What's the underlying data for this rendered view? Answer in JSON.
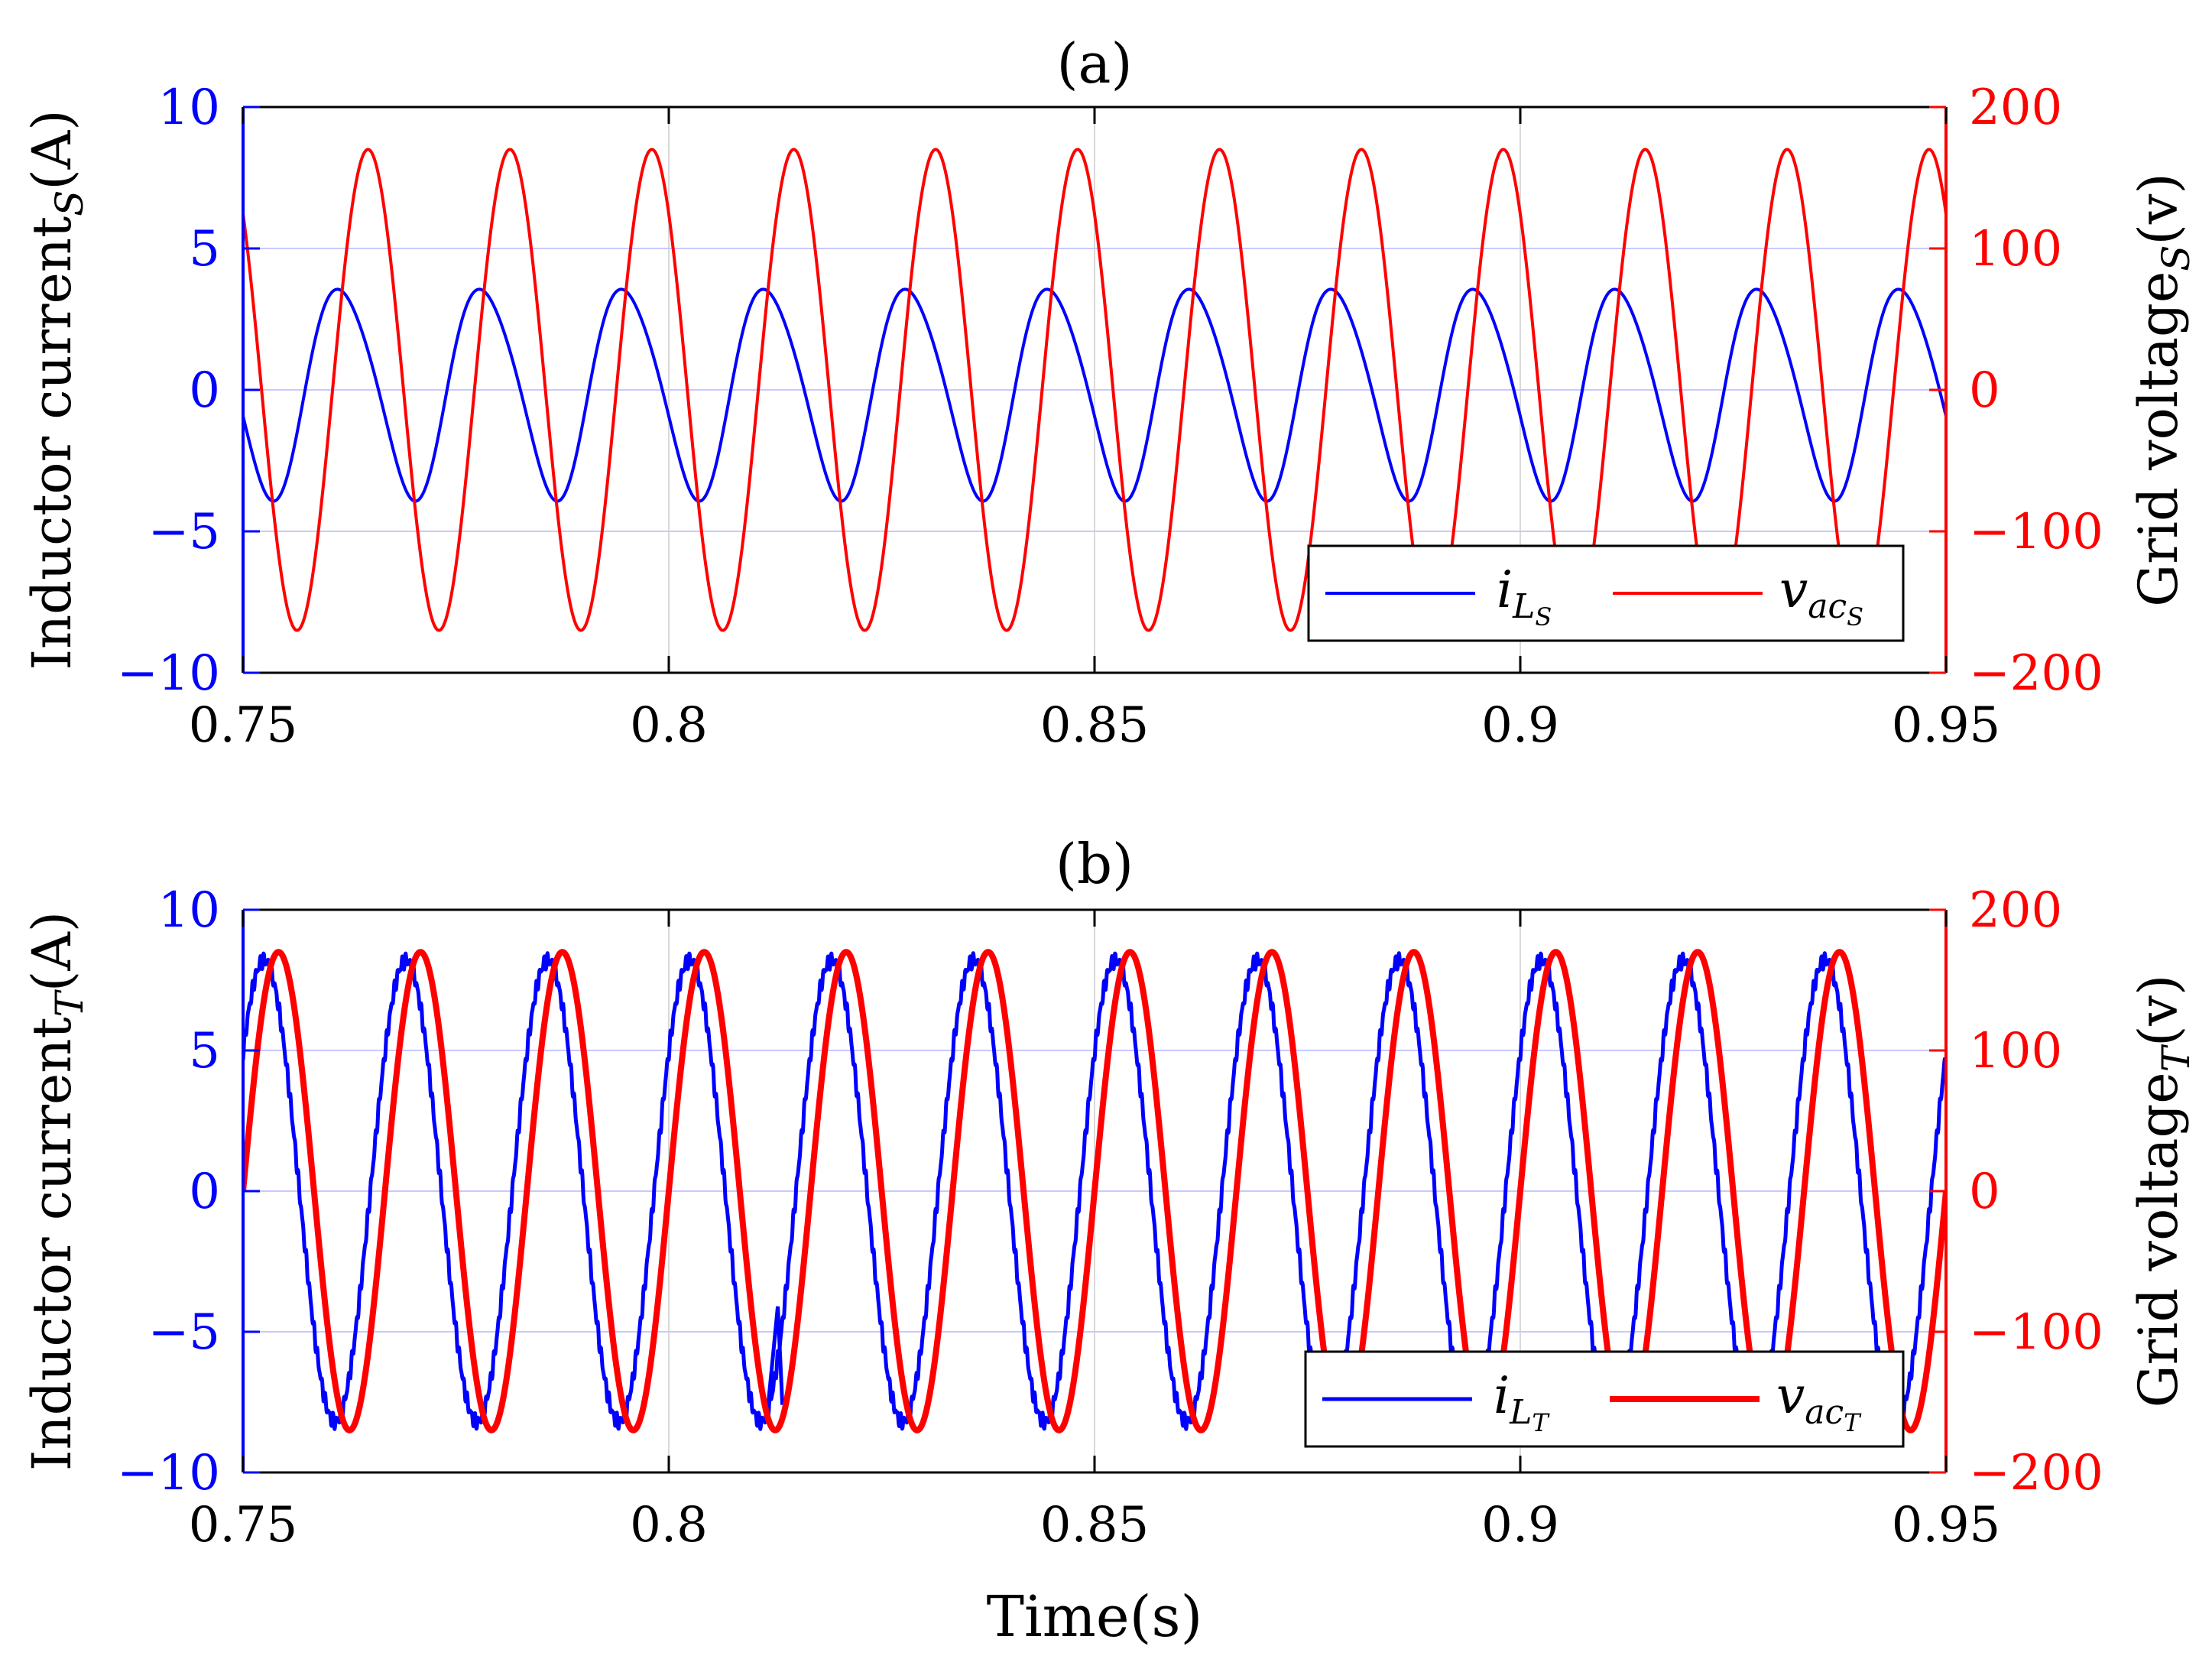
{
  "chart_data": [
    {
      "type": "line",
      "panel": "a",
      "title": "(a)",
      "xlabel": "",
      "xlim": [
        0.75,
        0.95
      ],
      "xticks": [
        "0.75",
        "0.8",
        "0.85",
        "0.9",
        "0.95"
      ],
      "ylabel_left": "Inductor current",
      "ylabel_left_sub": "S",
      "ylabel_left_unit": "(A)",
      "ylim_left": [
        -10,
        10
      ],
      "yticks_left": [
        "10",
        "5",
        "0",
        "−5",
        "−10"
      ],
      "ylabel_right": "Grid voltage",
      "ylabel_right_sub": "S",
      "ylabel_right_unit": "(v)",
      "ylim_right": [
        -200,
        200
      ],
      "yticks_right": [
        "200",
        "100",
        "0",
        "−100",
        "−200"
      ],
      "legend_position": "bottom-right",
      "series": [
        {
          "name": "i_LS",
          "legend_main": "i",
          "legend_sub": "L",
          "legend_subsub": "S",
          "axis": "left",
          "color": "#0000ff",
          "waveform": "sine",
          "frequency_hz": 60,
          "amplitude": 3.7,
          "phase_deg": 200,
          "peak_labels": [
            {
              "t": 0.7597,
              "v": 3.6
            },
            {
              "t": 0.7777,
              "v": 3.6
            },
            {
              "t": 0.7937,
              "v": 3.6
            },
            {
              "t": 0.8107,
              "v": 3.6
            },
            {
              "t": 0.8262,
              "v": 4.1
            },
            {
              "t": 0.8432,
              "v": 3.9
            },
            {
              "t": 0.8597,
              "v": 3.8
            },
            {
              "t": 0.8767,
              "v": 3.8
            },
            {
              "t": 0.8932,
              "v": 3.8
            },
            {
              "t": 0.9097,
              "v": 3.8
            },
            {
              "t": 0.9267,
              "v": 3.8
            },
            {
              "t": 0.9432,
              "v": 3.8
            }
          ]
        },
        {
          "name": "v_acS",
          "legend_main": "v",
          "legend_sub": "ac",
          "legend_subsub": "S",
          "axis": "right",
          "color": "#ff0000",
          "waveform": "sine",
          "frequency_hz": 60,
          "amplitude": 170,
          "phase_deg": 133
        }
      ]
    },
    {
      "type": "line",
      "panel": "b",
      "title": "(b)",
      "xlabel": "Time(s)",
      "xlim": [
        0.75,
        0.95
      ],
      "xticks": [
        "0.75",
        "0.8",
        "0.85",
        "0.9",
        "0.95"
      ],
      "ylabel_left": "Inductor current",
      "ylabel_left_sub": "T",
      "ylabel_left_unit": "(A)",
      "ylim_left": [
        -10,
        10
      ],
      "yticks_left": [
        "10",
        "5",
        "0",
        "−5",
        "−10"
      ],
      "ylabel_right": "Grid voltage",
      "ylabel_right_sub": "T",
      "ylabel_right_unit": "(v)",
      "ylim_right": [
        -200,
        200
      ],
      "yticks_right": [
        "200",
        "100",
        "0",
        "−100",
        "−200"
      ],
      "legend_position": "bottom-right",
      "series": [
        {
          "name": "i_LT",
          "legend_main": "i",
          "legend_sub": "L",
          "legend_subsub": "T",
          "axis": "left",
          "color": "#0000ff",
          "waveform": "sine",
          "frequency_hz": 60,
          "amplitude": 8.2,
          "phase_deg": 37,
          "ripple": true,
          "spike": {
            "t": 0.8128,
            "v": -4.1
          }
        },
        {
          "name": "v_acT",
          "legend_main": "v",
          "legend_sub": "ac",
          "legend_subsub": "T",
          "axis": "right",
          "color": "#ff0000",
          "waveform": "sine",
          "frequency_hz": 60,
          "amplitude": 170,
          "phase_deg": 0
        }
      ]
    }
  ]
}
